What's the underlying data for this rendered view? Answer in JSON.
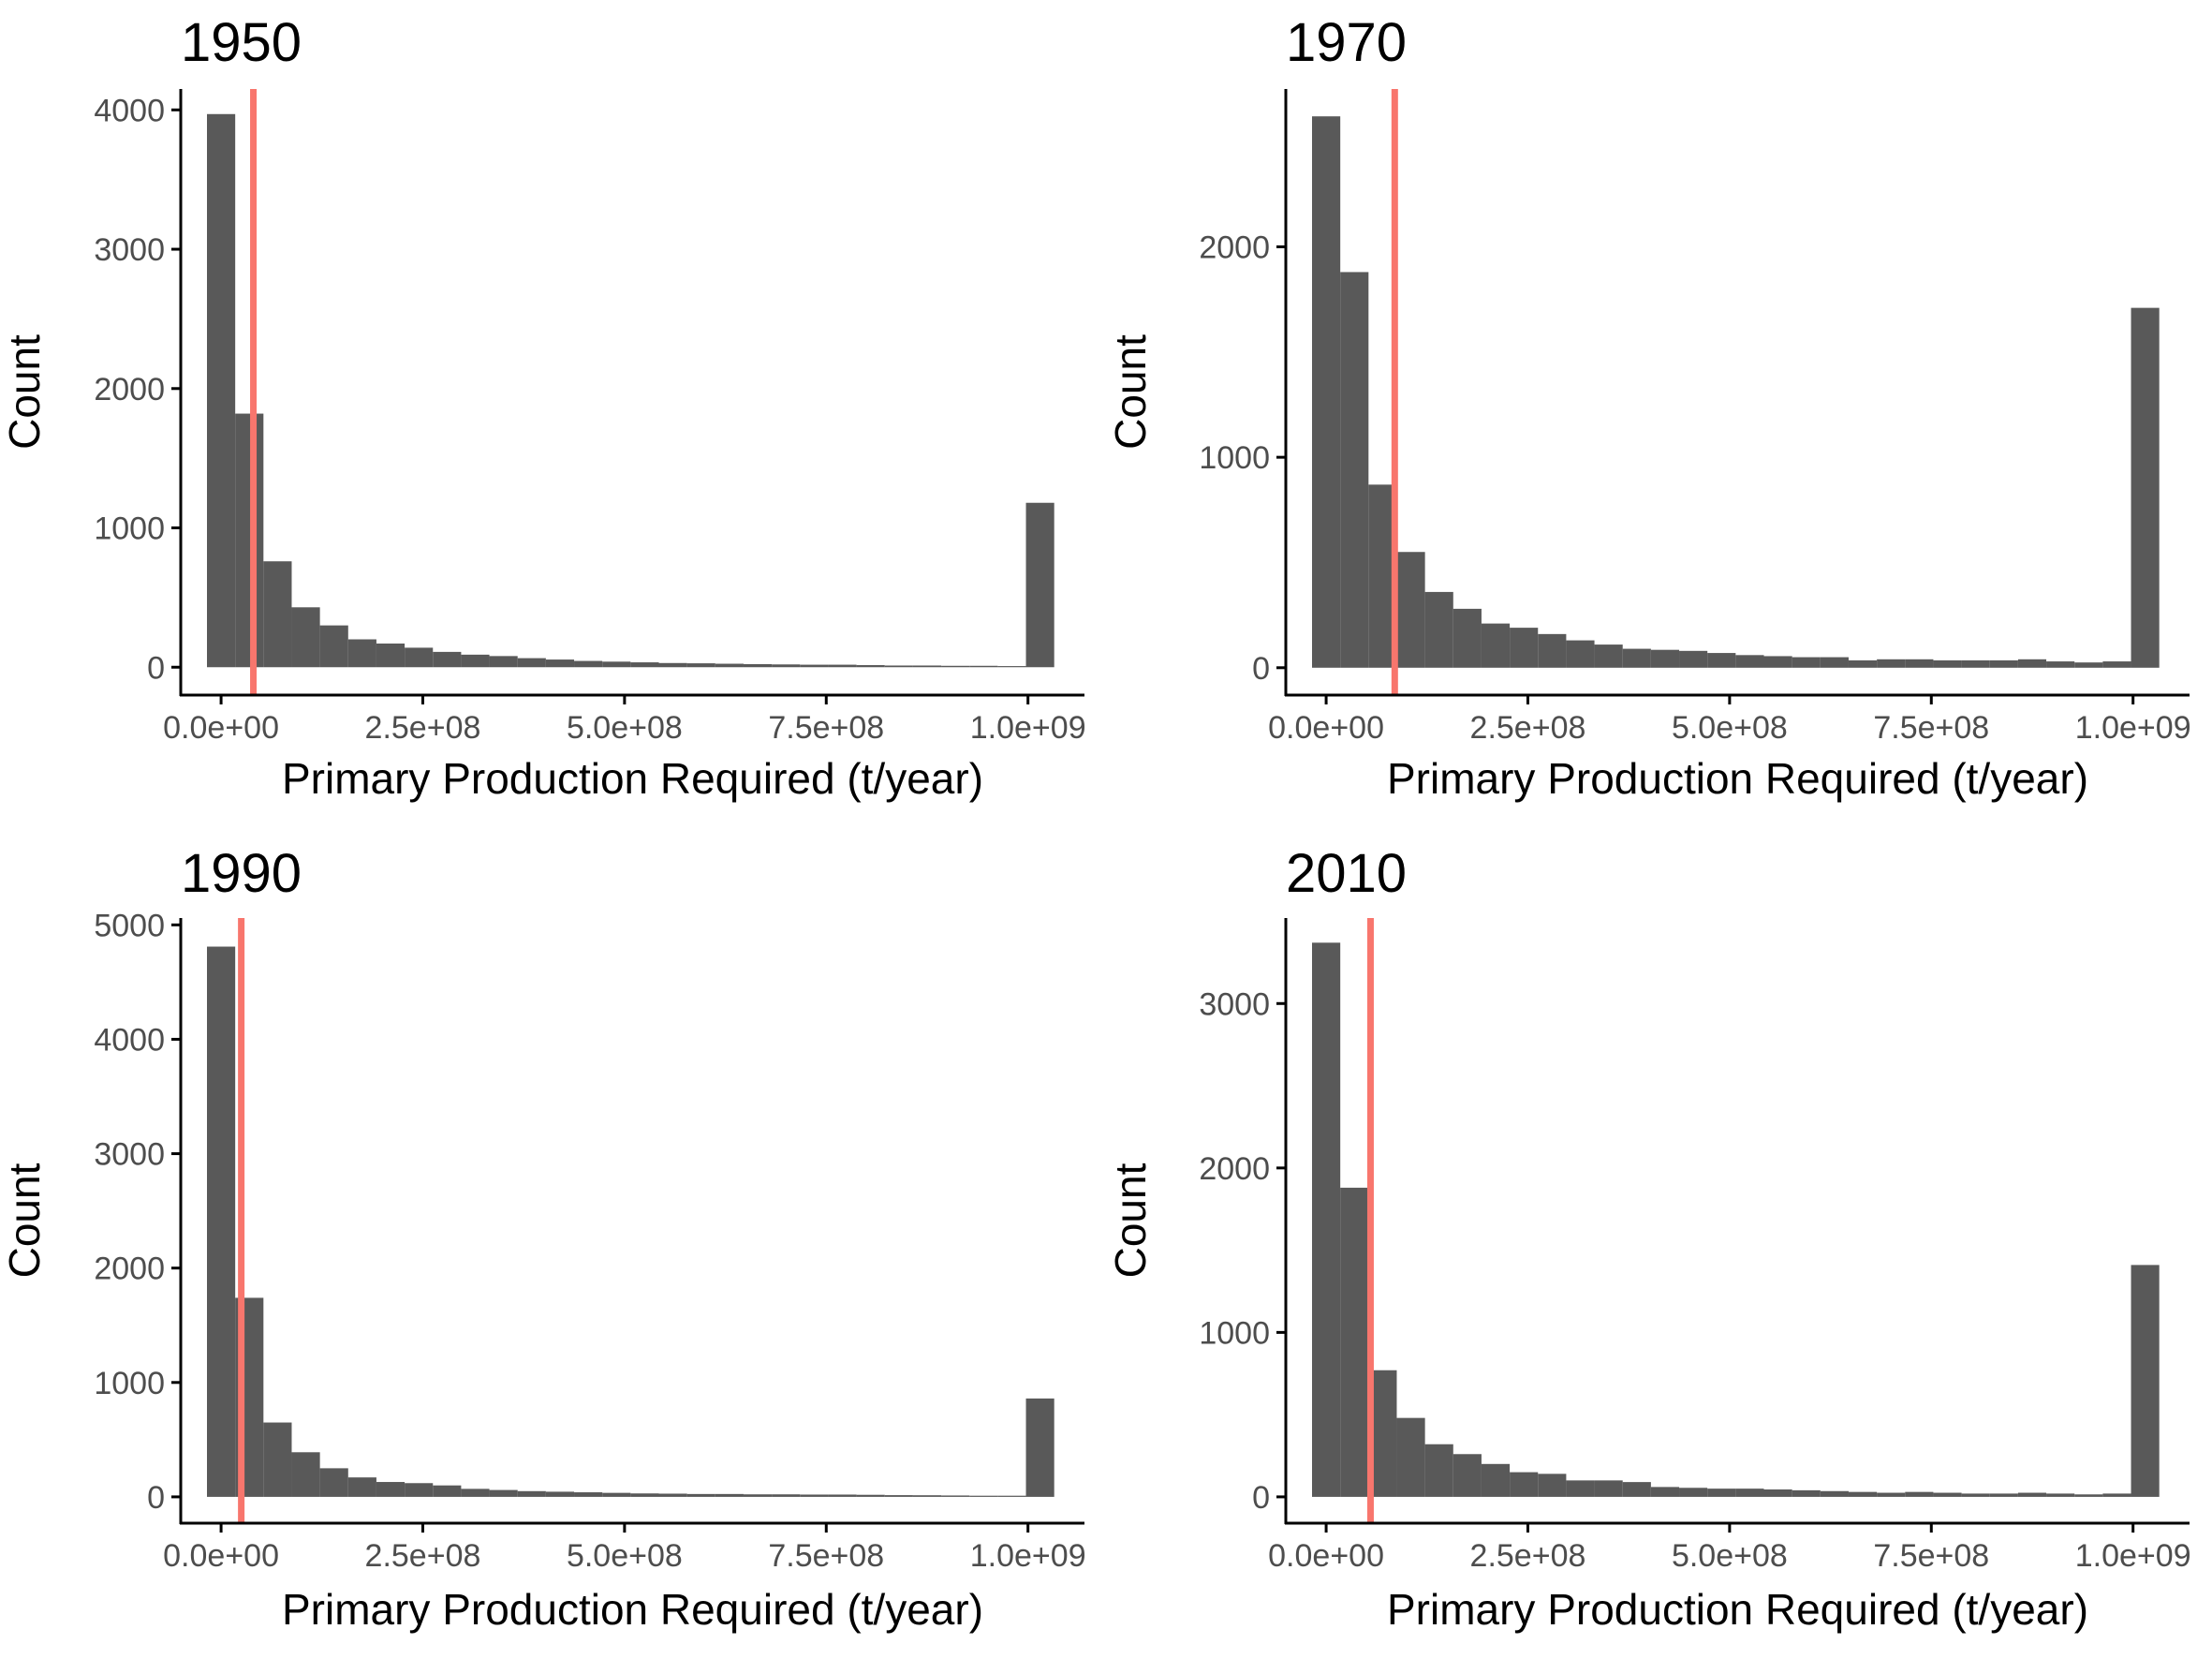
{
  "figure": {
    "bar_color": "#595959",
    "vline_color": "#F8766D",
    "axis_color": "#000000",
    "tick_label_color": "#4d4d4d"
  },
  "chart_data": [
    {
      "type": "bar",
      "title": "1950",
      "xlabel": "Primary Production Required (t/year)",
      "ylabel": "Count",
      "bin_width": 35000000,
      "bin_centers": [
        0,
        35000000,
        70000000,
        105000000,
        140000000,
        175000000,
        210000000,
        245000000,
        280000000,
        315000000,
        350000000,
        385000000,
        420000000,
        455000000,
        490000000,
        525000000,
        560000000,
        595000000,
        630000000,
        665000000,
        700000000,
        735000000,
        770000000,
        805000000,
        840000000,
        875000000,
        910000000,
        945000000,
        980000000,
        1015000000
      ],
      "counts": [
        3970,
        1820,
        760,
        430,
        300,
        200,
        170,
        140,
        110,
        90,
        80,
        65,
        55,
        45,
        40,
        35,
        30,
        28,
        25,
        22,
        20,
        18,
        18,
        15,
        12,
        12,
        10,
        10,
        8,
        1180
      ],
      "vline_x": 40000000,
      "xlim": [
        -50000000,
        1070000000
      ],
      "ylim": [
        -200,
        4150
      ],
      "x_ticks": [
        0,
        250000000,
        500000000,
        750000000,
        1000000000
      ],
      "x_tick_labels": [
        "0.0e+00",
        "2.5e+08",
        "5.0e+08",
        "7.5e+08",
        "1.0e+09"
      ],
      "y_ticks": [
        0,
        1000,
        2000,
        3000,
        4000
      ],
      "y_tick_labels": [
        "0",
        "1000",
        "2000",
        "3000",
        "4000"
      ],
      "grid": false
    },
    {
      "type": "bar",
      "title": "1970",
      "xlabel": "Primary Production Required (t/year)",
      "ylabel": "Count",
      "bin_width": 35000000,
      "bin_centers": [
        0,
        35000000,
        70000000,
        105000000,
        140000000,
        175000000,
        210000000,
        245000000,
        280000000,
        315000000,
        350000000,
        385000000,
        420000000,
        455000000,
        490000000,
        525000000,
        560000000,
        595000000,
        630000000,
        665000000,
        700000000,
        735000000,
        770000000,
        805000000,
        840000000,
        875000000,
        910000000,
        945000000,
        980000000,
        1015000000
      ],
      "counts": [
        2620,
        1880,
        870,
        550,
        360,
        280,
        210,
        190,
        160,
        130,
        110,
        90,
        85,
        80,
        70,
        60,
        55,
        50,
        50,
        35,
        40,
        40,
        35,
        35,
        35,
        40,
        30,
        25,
        30,
        1710
      ],
      "vline_x": 85000000,
      "xlim": [
        -50000000,
        1070000000
      ],
      "ylim": [
        -130,
        2750
      ],
      "x_ticks": [
        0,
        250000000,
        500000000,
        750000000,
        1000000000
      ],
      "x_tick_labels": [
        "0.0e+00",
        "2.5e+08",
        "5.0e+08",
        "7.5e+08",
        "1.0e+09"
      ],
      "y_ticks": [
        0,
        1000,
        2000
      ],
      "y_tick_labels": [
        "0",
        "1000",
        "2000"
      ],
      "grid": false
    },
    {
      "type": "bar",
      "title": "1990",
      "xlabel": "Primary Production Required (t/year)",
      "ylabel": "Count",
      "bin_width": 35000000,
      "bin_centers": [
        0,
        35000000,
        70000000,
        105000000,
        140000000,
        175000000,
        210000000,
        245000000,
        280000000,
        315000000,
        350000000,
        385000000,
        420000000,
        455000000,
        490000000,
        525000000,
        560000000,
        595000000,
        630000000,
        665000000,
        700000000,
        735000000,
        770000000,
        805000000,
        840000000,
        875000000,
        910000000,
        945000000,
        980000000,
        1015000000
      ],
      "counts": [
        4810,
        1740,
        650,
        390,
        250,
        170,
        130,
        120,
        100,
        70,
        60,
        50,
        45,
        40,
        35,
        30,
        28,
        25,
        25,
        22,
        22,
        20,
        20,
        18,
        15,
        14,
        12,
        10,
        10,
        860
      ],
      "vline_x": 25000000,
      "xlim": [
        -50000000,
        1070000000
      ],
      "ylim": [
        -230,
        5060
      ],
      "x_ticks": [
        0,
        250000000,
        500000000,
        750000000,
        1000000000
      ],
      "x_tick_labels": [
        "0.0e+00",
        "2.5e+08",
        "5.0e+08",
        "7.5e+08",
        "1.0e+09"
      ],
      "y_ticks": [
        0,
        1000,
        2000,
        3000,
        4000,
        5000
      ],
      "y_tick_labels": [
        "0",
        "1000",
        "2000",
        "3000",
        "4000",
        "5000"
      ],
      "grid": false
    },
    {
      "type": "bar",
      "title": "2010",
      "xlabel": "Primary Production Required (t/year)",
      "ylabel": "Count",
      "bin_width": 35000000,
      "bin_centers": [
        0,
        35000000,
        70000000,
        105000000,
        140000000,
        175000000,
        210000000,
        245000000,
        280000000,
        315000000,
        350000000,
        385000000,
        420000000,
        455000000,
        490000000,
        525000000,
        560000000,
        595000000,
        630000000,
        665000000,
        700000000,
        735000000,
        770000000,
        805000000,
        840000000,
        875000000,
        910000000,
        945000000,
        980000000,
        1015000000
      ],
      "counts": [
        3370,
        1880,
        770,
        480,
        320,
        260,
        200,
        150,
        140,
        100,
        100,
        90,
        60,
        55,
        50,
        50,
        45,
        40,
        35,
        30,
        25,
        30,
        25,
        20,
        20,
        25,
        20,
        15,
        20,
        1410
      ],
      "vline_x": 55000000,
      "xlim": [
        -50000000,
        1070000000
      ],
      "ylim": [
        -160,
        3520
      ],
      "x_ticks": [
        0,
        250000000,
        500000000,
        750000000,
        1000000000
      ],
      "x_tick_labels": [
        "0.0e+00",
        "2.5e+08",
        "5.0e+08",
        "7.5e+08",
        "1.0e+09"
      ],
      "y_ticks": [
        0,
        1000,
        2000,
        3000
      ],
      "y_tick_labels": [
        "0",
        "1000",
        "2000",
        "3000"
      ],
      "grid": false
    }
  ]
}
